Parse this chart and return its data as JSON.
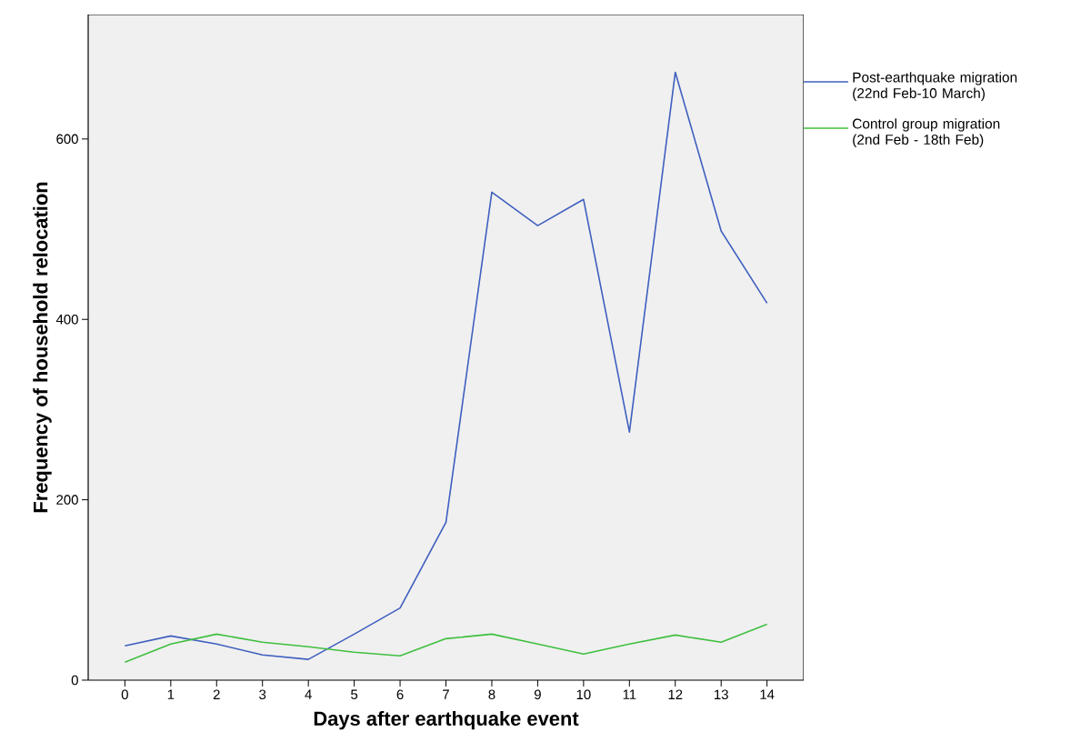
{
  "chart_data": {
    "type": "line",
    "xlabel": "Days after earthquake event",
    "ylabel": "Frequency of household relocation",
    "x": [
      0,
      1,
      2,
      3,
      4,
      5,
      6,
      7,
      8,
      9,
      10,
      11,
      12,
      13,
      14
    ],
    "series": [
      {
        "name": "Post-earthquake migration (22nd Feb-10 March)",
        "color": "#3f5fbf",
        "values": [
          38,
          49,
          40,
          28,
          23,
          51,
          80,
          175,
          541,
          504,
          533,
          275,
          674,
          498,
          418
        ]
      },
      {
        "name": "Control group migration (2nd Feb - 18th Feb)",
        "color": "#3fbf3f",
        "values": [
          20,
          40,
          51,
          42,
          37,
          31,
          27,
          46,
          51,
          40,
          29,
          40,
          50,
          42,
          62
        ]
      }
    ],
    "xlim": [
      -0.8,
      14.8
    ],
    "ylim": [
      0,
      738
    ],
    "xticks": [
      0,
      1,
      2,
      3,
      4,
      5,
      6,
      7,
      8,
      9,
      10,
      11,
      12,
      13,
      14
    ],
    "yticks": [
      0,
      200,
      400,
      600
    ],
    "grid": false,
    "legend": "right",
    "marker": "none",
    "line_style": "solid"
  }
}
